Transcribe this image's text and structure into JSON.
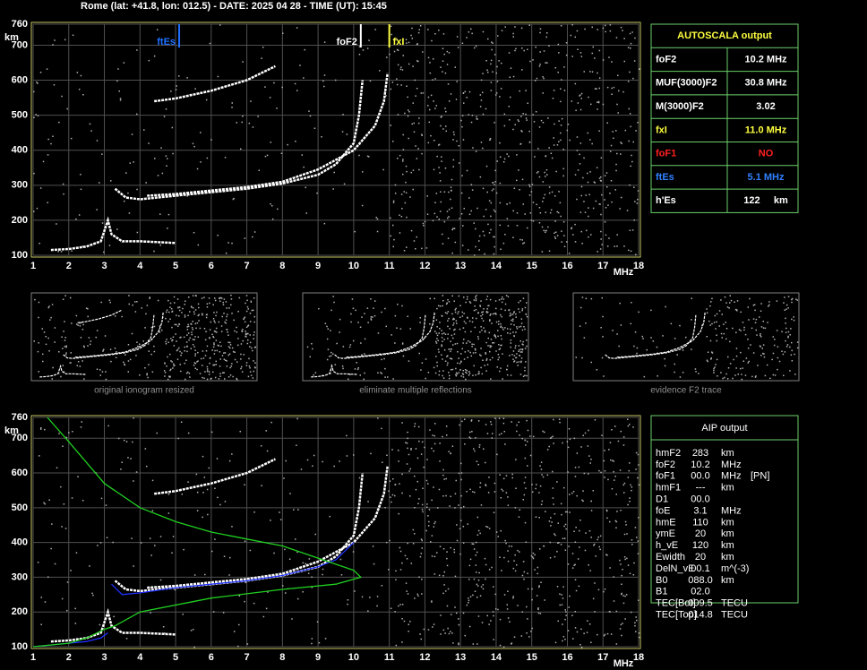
{
  "header": "Rome (lat: +41.8, lon: 012.5) - DATE: 2025 04 28 - TIME (UT): 15:45",
  "chart_data": [
    {
      "type": "line",
      "x_label": "MHz",
      "y_label": "km",
      "xlim": [
        1,
        18
      ],
      "ylim": [
        100,
        760
      ],
      "xticks": [
        1,
        2,
        3,
        4,
        5,
        6,
        7,
        8,
        9,
        10,
        11,
        12,
        13,
        14,
        15,
        16,
        17,
        18
      ],
      "yticks": [
        100,
        200,
        300,
        400,
        500,
        600,
        700,
        760
      ],
      "series": [
        {
          "color": "#ffffff",
          "x": [
            3.3,
            3.6,
            4,
            5,
            6,
            7,
            8,
            9,
            9.5,
            10,
            10.15,
            10.25
          ],
          "values": [
            290,
            265,
            260,
            270,
            280,
            290,
            305,
            330,
            360,
            420,
            500,
            600
          ]
        },
        {
          "color": "#ffffff",
          "x": [
            4.2,
            5,
            6,
            7,
            8,
            9,
            10,
            10.6,
            10.85,
            10.95
          ],
          "values": [
            270,
            275,
            285,
            295,
            310,
            345,
            400,
            470,
            540,
            620
          ]
        },
        {
          "color": "#ffffff",
          "x": [
            1.5,
            2,
            2.5,
            2.9,
            3.1,
            3.2,
            3.5,
            4,
            5
          ],
          "values": [
            115,
            118,
            125,
            140,
            200,
            160,
            140,
            140,
            135
          ]
        },
        {
          "color": "#ffffff",
          "x": [
            4.4,
            5,
            6,
            7,
            7.8
          ],
          "values": [
            540,
            548,
            570,
            600,
            640
          ]
        }
      ],
      "annotations": [
        {
          "text": "ftEs",
          "x": 5.1,
          "color": "#1e6fff"
        },
        {
          "text": "foF2",
          "x": 10.2,
          "color": "#ffffff"
        },
        {
          "text": "fxI",
          "x": 11.0,
          "color": "#ffff40"
        }
      ]
    },
    {
      "type": "line",
      "x_label": "MHz",
      "y_label": "km",
      "xlim": [
        1,
        18
      ],
      "ylim": [
        100,
        760
      ],
      "xticks": [
        1,
        2,
        3,
        4,
        5,
        6,
        7,
        8,
        9,
        10,
        11,
        12,
        13,
        14,
        15,
        16,
        17,
        18
      ],
      "yticks": [
        100,
        200,
        300,
        400,
        500,
        600,
        700,
        760
      ],
      "series": [
        {
          "color": "#ffffff",
          "x": [
            3.3,
            3.6,
            4,
            5,
            6,
            7,
            8,
            9,
            9.5,
            10,
            10.15,
            10.25
          ],
          "values": [
            290,
            265,
            260,
            270,
            280,
            290,
            305,
            330,
            360,
            420,
            500,
            600
          ]
        },
        {
          "color": "#ffffff",
          "x": [
            4.2,
            5,
            6,
            7,
            8,
            9,
            10,
            10.6,
            10.85,
            10.95
          ],
          "values": [
            270,
            275,
            285,
            295,
            310,
            345,
            400,
            470,
            540,
            620
          ]
        },
        {
          "color": "#ffffff",
          "x": [
            1.5,
            2,
            2.5,
            2.9,
            3.1,
            3.2,
            3.5,
            4,
            5
          ],
          "values": [
            115,
            118,
            125,
            140,
            200,
            160,
            140,
            140,
            135
          ]
        },
        {
          "color": "#ffffff",
          "x": [
            4.4,
            5,
            6,
            7,
            7.8
          ],
          "values": [
            540,
            548,
            570,
            600,
            640
          ]
        },
        {
          "color": "#2030ff",
          "x": [
            3.2,
            3.5,
            4,
            5,
            6,
            7,
            8,
            9,
            9.5,
            10
          ],
          "values": [
            280,
            250,
            255,
            270,
            280,
            290,
            305,
            330,
            350,
            400
          ]
        },
        {
          "color": "#2030ff",
          "x": [
            1,
            2,
            2.5,
            2.9,
            3.1
          ],
          "values": [
            100,
            110,
            115,
            125,
            140
          ]
        },
        {
          "color": "#20d020",
          "x": [
            1.4,
            2,
            3,
            4,
            5,
            6,
            7,
            8,
            9,
            10,
            10.2,
            9.5,
            8,
            6,
            4,
            3.3,
            3,
            2.5,
            2,
            1
          ],
          "values": [
            760,
            690,
            570,
            500,
            460,
            430,
            410,
            390,
            355,
            320,
            300,
            280,
            265,
            240,
            200,
            160,
            150,
            125,
            110,
            100
          ]
        }
      ]
    }
  ],
  "thumbnails": [
    "original ionogram resized",
    "eliminate multiple reflections",
    "evidence F2 trace"
  ],
  "autoscala": {
    "title": "AUTOSCALA output",
    "rows": [
      {
        "label": "foF2",
        "value": "10.2 MHz",
        "color": "#ffffff"
      },
      {
        "label": "MUF(3000)F2",
        "value": "30.8 MHz",
        "color": "#ffffff"
      },
      {
        "label": "M(3000)F2",
        "value": "3.02",
        "color": "#ffffff"
      },
      {
        "label": "fxI",
        "value": "11.0 MHz",
        "color": "#ffff40"
      },
      {
        "label": "foF1",
        "value": "NO",
        "color": "#ff2020"
      },
      {
        "label": "ftEs",
        "value": "5.1 MHz",
        "color": "#3080ff"
      },
      {
        "label": "h'Es",
        "value": "122     km",
        "color": "#ffffff"
      }
    ]
  },
  "aip": {
    "title": "AIP output",
    "rows": [
      [
        "hmF2",
        "283",
        "km"
      ],
      [
        "foF2",
        "10.2",
        "MHz"
      ],
      [
        "foF1",
        "00.0",
        "MHz",
        "[PN]"
      ],
      [
        "hmF1",
        "---",
        "km"
      ],
      [
        "D1",
        "00.0"
      ],
      [
        "foE",
        "3.1",
        "MHz"
      ],
      [
        "hmE",
        "110",
        "km"
      ],
      [
        "ymE",
        "20",
        "km"
      ],
      [
        "h_vE",
        "120",
        "km"
      ],
      [
        "Ewidth",
        "20",
        "km"
      ],
      [
        "DelN_vE",
        "00.1",
        "m^(-3)"
      ],
      [
        "B0",
        "088.0",
        "km"
      ],
      [
        "B1",
        "02.0"
      ],
      [
        "TEC[Bot]",
        "009.5",
        "TECU"
      ],
      [
        "TEC[Top]",
        "014.8",
        "TECU"
      ]
    ]
  }
}
